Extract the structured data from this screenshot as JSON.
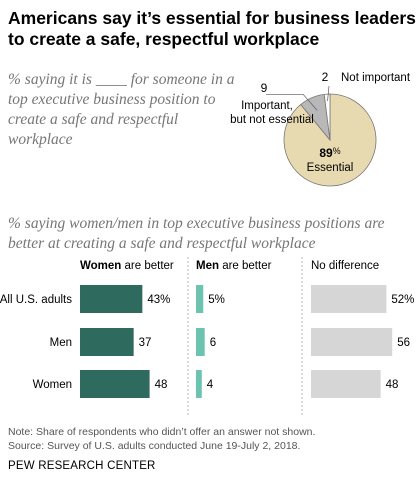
{
  "title": "Americans say it’s essential for business leaders to create a safe, respectful workplace",
  "pie_subtitle": "% saying it is ____ for someone in a top executive business position to create a safe and respectful workplace",
  "bars_subtitle": "% saying women/men in top executive business positions are better at creating a safe and respectful workplace",
  "note": "Note: Share of respondents who didn’t offer an answer not shown.",
  "source": "Source: Survey of U.S. adults conducted June 19-July 2, 2018.",
  "brand": "PEW RESEARCH CENTER",
  "colors": {
    "essential": "#e8dab0",
    "important": "#b8b8b8",
    "not_important": "#ffffff",
    "women_bar": "#2e6b5e",
    "men_bar": "#6cc4b0",
    "no_diff_bar": "#d6d6d6"
  },
  "chart_data": [
    {
      "type": "pie",
      "slices": [
        {
          "label": "Essential",
          "value": 89,
          "display": "89%"
        },
        {
          "label": "Important, but not essential",
          "value": 9,
          "display": "9"
        },
        {
          "label": "Not important",
          "value": 2,
          "display": "2"
        }
      ]
    },
    {
      "type": "bar",
      "orientation": "horizontal",
      "categories": [
        "All U.S. adults",
        "Men",
        "Women"
      ],
      "series": [
        {
          "name": "Women are better",
          "name_bold": "Women",
          "name_rest": " are better",
          "values": [
            43,
            37,
            48
          ],
          "labels": [
            "43%",
            "37",
            "48"
          ]
        },
        {
          "name": "Men are better",
          "name_bold": "Men",
          "name_rest": " are better",
          "values": [
            5,
            6,
            4
          ],
          "labels": [
            "5%",
            "6",
            "4"
          ]
        },
        {
          "name": "No difference",
          "name_bold": "",
          "name_rest": "No difference",
          "values": [
            52,
            56,
            48
          ],
          "labels": [
            "52%",
            "56",
            "48"
          ]
        }
      ]
    }
  ]
}
